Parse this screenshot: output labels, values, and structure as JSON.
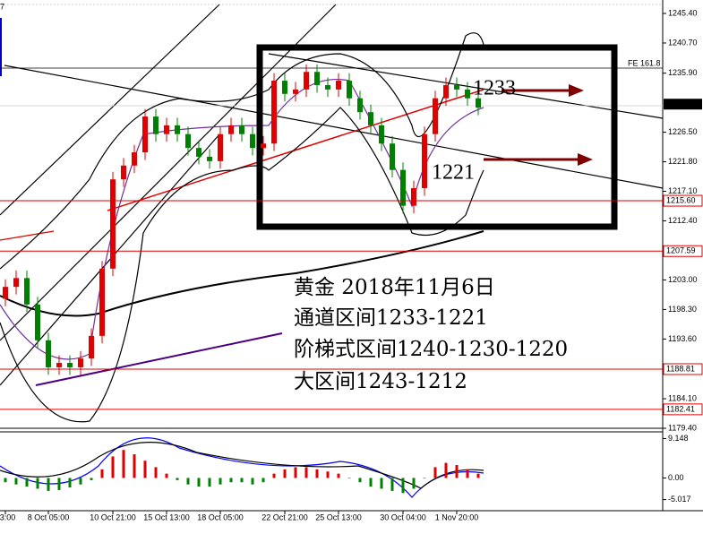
{
  "chart_data": {
    "type": "candlestick",
    "corner_label": "7",
    "categories": [
      "13:00",
      null,
      null,
      null,
      "8 Oct 05:00",
      null,
      null,
      null,
      null,
      null,
      "10 Oct 21:00",
      null,
      null,
      null,
      null,
      "15 Oct 13:00",
      null,
      null,
      null,
      null,
      "18 Oct 05:00",
      null,
      null,
      null,
      null,
      null,
      "22 Oct 21:00",
      null,
      null,
      null,
      null,
      "25 Oct 13:00",
      null,
      null,
      null,
      null,
      null,
      "30 Oct 04:00",
      null,
      null,
      null,
      null,
      "1 Nov 20:00",
      null,
      null
    ],
    "open": [
      1200.0,
      1201.9,
      1203.3,
      1199.1,
      1193.4,
      1189.1,
      1189.8,
      1189.1,
      1190.5,
      1194.1,
      1204.8,
      1219.0,
      1221.2,
      1223.3,
      1229.0,
      1226.2,
      1227.6,
      1226.2,
      1224.0,
      1222.6,
      1221.9,
      1226.2,
      1227.6,
      1226.2,
      1224.0,
      1224.7,
      1234.7,
      1232.6,
      1233.3,
      1236.1,
      1234.0,
      1233.3,
      1234.7,
      1231.9,
      1229.7,
      1227.6,
      1224.7,
      1220.5,
      1214.8,
      1217.6,
      1226.2,
      1231.9,
      1234.0,
      1233.3,
      1231.9
    ],
    "high": [
      1203.1,
      1204.5,
      1204.5,
      1200.3,
      1194.6,
      1191.0,
      1191.0,
      1191.7,
      1195.3,
      1206.0,
      1220.2,
      1222.4,
      1224.5,
      1230.2,
      1230.2,
      1228.8,
      1228.8,
      1227.4,
      1225.2,
      1223.8,
      1227.4,
      1228.8,
      1228.8,
      1227.4,
      1225.9,
      1235.9,
      1235.9,
      1234.5,
      1237.3,
      1237.3,
      1235.2,
      1235.9,
      1235.9,
      1233.1,
      1230.9,
      1228.8,
      1225.9,
      1221.7,
      1218.8,
      1227.4,
      1233.1,
      1235.2,
      1235.2,
      1234.5,
      1233.1
    ],
    "low": [
      1198.8,
      1200.7,
      1197.9,
      1192.2,
      1187.9,
      1187.9,
      1187.9,
      1187.9,
      1189.3,
      1192.9,
      1203.6,
      1217.8,
      1220.0,
      1222.1,
      1225.0,
      1225.0,
      1225.0,
      1222.8,
      1221.4,
      1220.7,
      1220.7,
      1225.0,
      1225.0,
      1222.8,
      1222.8,
      1223.5,
      1231.4,
      1231.4,
      1232.1,
      1232.8,
      1232.1,
      1232.1,
      1230.7,
      1228.5,
      1226.4,
      1223.5,
      1219.3,
      1213.6,
      1213.6,
      1216.4,
      1225.0,
      1230.7,
      1232.1,
      1230.7,
      1229.2
    ],
    "close": [
      1201.9,
      1203.3,
      1199.1,
      1193.4,
      1189.1,
      1189.8,
      1189.1,
      1190.5,
      1194.1,
      1204.8,
      1219.0,
      1221.2,
      1223.3,
      1229.0,
      1226.2,
      1227.6,
      1226.2,
      1224.0,
      1222.6,
      1221.9,
      1226.2,
      1227.6,
      1226.2,
      1224.0,
      1224.7,
      1234.7,
      1232.6,
      1233.3,
      1236.1,
      1234.0,
      1233.3,
      1234.7,
      1231.9,
      1229.7,
      1227.6,
      1224.7,
      1220.5,
      1214.8,
      1217.6,
      1226.2,
      1231.9,
      1234.0,
      1233.3,
      1231.9,
      1230.4
    ],
    "up_color": "#e00000",
    "down_color": "#008000",
    "ylim": [
      1179.4,
      1245.4
    ],
    "yticks": [
      {
        "value": 1245.4,
        "label": "1245.40"
      },
      {
        "value": 1240.7,
        "label": "1240.70"
      },
      {
        "value": 1235.9,
        "label": "1235.90"
      },
      {
        "value": 1226.5,
        "label": "1226.50"
      },
      {
        "value": 1221.8,
        "label": "1221.80"
      },
      {
        "value": 1217.1,
        "label": "1217.10"
      },
      {
        "value": 1212.4,
        "label": "1212.40"
      },
      {
        "value": 1203.0,
        "label": "1203.00"
      },
      {
        "value": 1198.3,
        "label": "1198.30"
      },
      {
        "value": 1193.6,
        "label": "1193.60"
      },
      {
        "value": 1184.1,
        "label": "1184.10"
      },
      {
        "value": 1179.4,
        "label": "1179.40"
      }
    ],
    "current_price": {
      "value": 1230.97,
      "label": "1230.97"
    },
    "hlines": [
      {
        "value": 1215.6,
        "label": "1215.60"
      },
      {
        "value": 1207.59,
        "label": "1207.59"
      },
      {
        "value": 1188.81,
        "label": "1188.81"
      },
      {
        "value": 1182.41,
        "label": "1182.41"
      }
    ],
    "hline_color": "#e00000",
    "fib_label": "FE 161.8",
    "annotations": [
      "1233",
      "1221"
    ],
    "notes": [
      "黄金  2018年11月6日",
      "通道区间1233-1221",
      "阶梯式区间1240-1230-1220",
      "大区间1243-1212"
    ],
    "macd": {
      "values": [
        -1,
        -1.5,
        -2,
        -2.5,
        -3,
        -2.8,
        -2.2,
        -1.5,
        -0.5,
        2,
        5,
        6.5,
        5.5,
        4,
        2.5,
        1,
        -0.5,
        -1.5,
        -2,
        -2,
        -1.5,
        -1,
        -1,
        -1.5,
        -1,
        1,
        2,
        2.5,
        2.5,
        2,
        1.5,
        1,
        0,
        -1,
        -2,
        -2.5,
        -3,
        -3.5,
        -2.5,
        0,
        2.5,
        3.5,
        3,
        2,
        1
      ],
      "ylim": [
        -7.6,
        10.7
      ],
      "yticks": [
        9.148,
        {
          "value": 0,
          "label": "0.00"
        },
        -5.017
      ]
    }
  }
}
